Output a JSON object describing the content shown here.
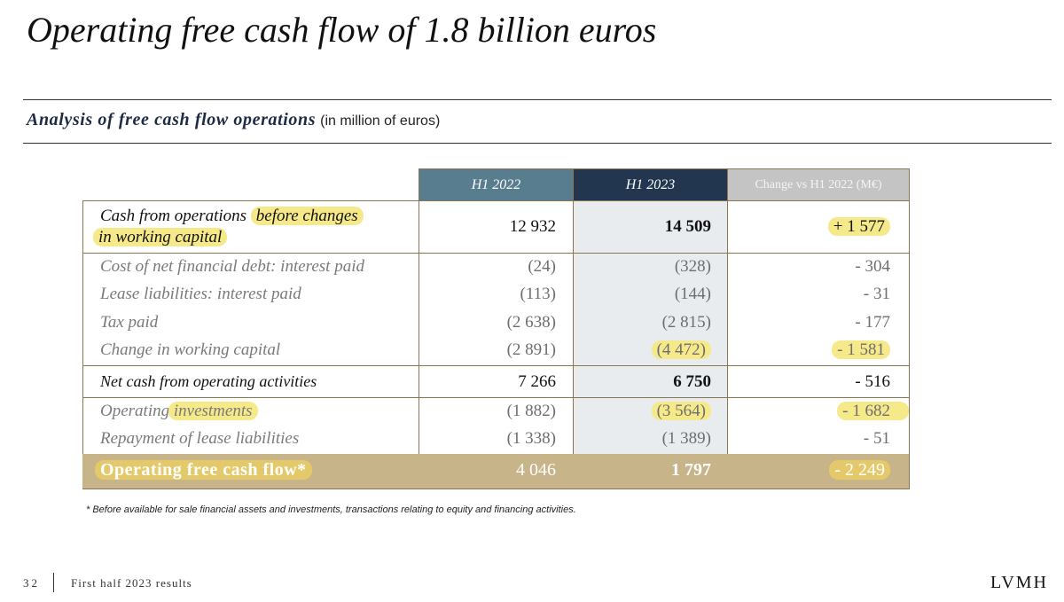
{
  "slide": {
    "title": "Operating free cash flow of 1.8 billion euros",
    "subtitle_main": "Analysis of free cash flow operations",
    "subtitle_unit": "(in million of euros)"
  },
  "table": {
    "headers": [
      "H1 2022",
      "H1 2023",
      "Change vs H1 2022 (M€)"
    ],
    "rows": [
      {
        "label": "Cash from operations before changes in working capital",
        "label_plain": "Cash from operations ",
        "label_hl_1": "before changes",
        "label_hl_2": "in working capital",
        "h1_2022": "12 932",
        "h1_2023": "14 509",
        "change": "+ 1 577"
      },
      {
        "label": "Cost of net financial debt: interest paid",
        "h1_2022": "(24)",
        "h1_2023": "(328)",
        "change": "- 304"
      },
      {
        "label": "Lease liabilities: interest paid",
        "h1_2022": "(113)",
        "h1_2023": "(144)",
        "change": "- 31"
      },
      {
        "label": "Tax paid",
        "h1_2022": "(2 638)",
        "h1_2023": "(2 815)",
        "change": "- 177"
      },
      {
        "label": "Change in working capital",
        "h1_2022": "(2 891)",
        "h1_2023": "(4 472)",
        "change": "- 1 581"
      },
      {
        "label": "Net cash from operating activities",
        "h1_2022": "7 266",
        "h1_2023": "6 750",
        "change": "- 516"
      },
      {
        "label": "Operating investments",
        "label_plain": "Operating ",
        "label_hl": "investments",
        "h1_2022": "(1 882)",
        "h1_2023": "(3 564)",
        "change": "- 1 682"
      },
      {
        "label": "Repayment of lease liabilities",
        "h1_2022": "(1 338)",
        "h1_2023": "(1 389)",
        "change": "- 51"
      },
      {
        "label": "Operating free cash flow*",
        "h1_2022": "4 046",
        "h1_2023": "1 797",
        "change": "- 2 249"
      }
    ]
  },
  "footnote": "* Before available for sale financial assets and investments, transactions relating to equity and financing activities.",
  "footer": {
    "page_number": "32",
    "caption": "First half 2023 results",
    "brand": "LVMH"
  },
  "colors": {
    "header_2022": "#577d8f",
    "header_2023": "#233650",
    "header_change": "#c4c4c4",
    "col_2023_bg": "#e8ecef",
    "total_band": "#c7b489",
    "highlight": "#f6e98a"
  }
}
